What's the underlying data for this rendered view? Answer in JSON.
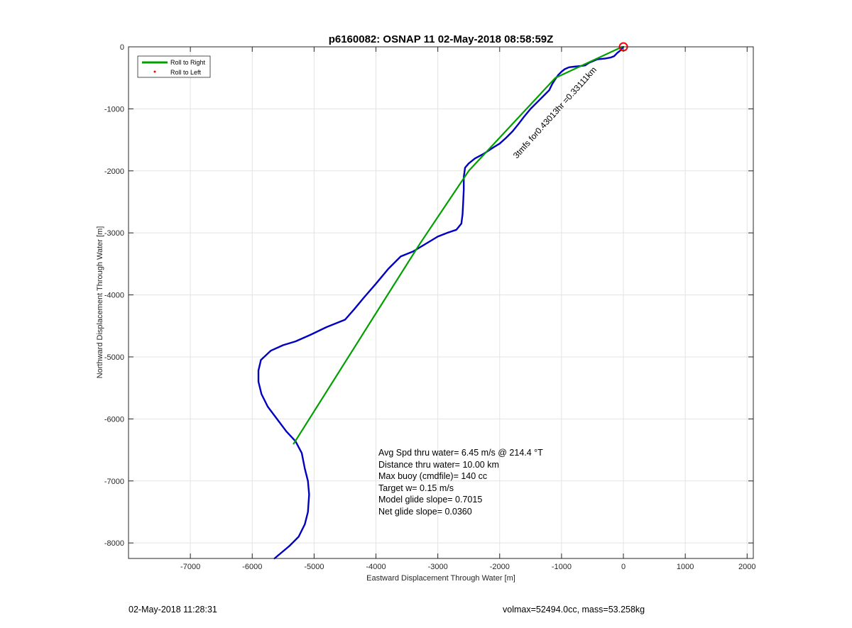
{
  "chart_data": {
    "type": "line",
    "title": "p6160082: OSNAP 11 02-May-2018 08:58:59Z",
    "xlabel": "Eastward Displacement Through Water [m]",
    "ylabel": "Northward Displacement Through Water [m]",
    "xlim": [
      -8000,
      2100
    ],
    "ylim": [
      -8250,
      0
    ],
    "xticks": [
      -7000,
      -6000,
      -5000,
      -4000,
      -3000,
      -2000,
      -1000,
      0,
      1000,
      2000
    ],
    "yticks": [
      0,
      -1000,
      -2000,
      -3000,
      -4000,
      -5000,
      -6000,
      -7000,
      -8000
    ],
    "grid": true,
    "legend_placement": "top-left",
    "legend": [
      {
        "label": "Roll to Right",
        "color": "#00a000",
        "style": "line"
      },
      {
        "label": "Roll to Left",
        "color": "#ff0000",
        "style": "dot"
      }
    ],
    "series": [
      {
        "color": "#0000c0",
        "x": [
          0,
          -50,
          -100,
          -150,
          -200,
          -300,
          -420,
          -560,
          -620,
          -700,
          -800,
          -880,
          -950,
          -1000,
          -1050,
          -1100,
          -1150,
          -1200,
          -1300,
          -1400,
          -1500,
          -1600,
          -1700,
          -1790,
          -1900,
          -2000,
          -2100,
          -2250,
          -2400,
          -2500,
          -2560,
          -2580,
          -2580,
          -2590,
          -2600,
          -2620,
          -2700,
          -2850,
          -3000,
          -3200,
          -3400,
          -3600,
          -3800,
          -4000,
          -4200,
          -4350,
          -4500,
          -4800,
          -5050,
          -5300,
          -5500,
          -5700,
          -5860,
          -5900,
          -5900,
          -5850,
          -5750,
          -5600,
          -5450,
          -5300,
          -5200,
          -5150,
          -5100,
          -5080,
          -5100,
          -5150,
          -5250,
          -5400,
          -5640
        ],
        "y": [
          0,
          -60,
          -100,
          -150,
          -170,
          -190,
          -200,
          -260,
          -300,
          -310,
          -320,
          -330,
          -360,
          -400,
          -450,
          -520,
          -600,
          -700,
          -800,
          -900,
          -1000,
          -1120,
          -1250,
          -1360,
          -1470,
          -1560,
          -1620,
          -1720,
          -1800,
          -1880,
          -1950,
          -2100,
          -2300,
          -2500,
          -2700,
          -2850,
          -2950,
          -3000,
          -3060,
          -3180,
          -3300,
          -3380,
          -3580,
          -3820,
          -4050,
          -4230,
          -4400,
          -4520,
          -4640,
          -4750,
          -4810,
          -4900,
          -5050,
          -5220,
          -5400,
          -5600,
          -5800,
          -6000,
          -6200,
          -6360,
          -6550,
          -6800,
          -7000,
          -7220,
          -7500,
          -7700,
          -7900,
          -8050,
          -8250
        ]
      },
      {
        "name": "Roll to Right",
        "color": "#00a000",
        "x": [
          -5330,
          -3300,
          -2500,
          -1100,
          -20
        ],
        "y": [
          -6400,
          -3190,
          -2000,
          -500,
          0
        ]
      }
    ],
    "annotations": {
      "track_label": "3tmfs for0.43013hr =0.33111km",
      "track_label_rotation_deg": 48,
      "start_marker": {
        "x": 0,
        "y": 0,
        "color": "#ff0000"
      }
    },
    "stats": [
      "Avg Spd thru water=  6.45 m/s @ 214.4 °T",
      "Distance thru water= 10.00 km",
      "Max buoy (cmdfile)= 140 cc",
      "Target w= 0.15 m/s",
      "Model glide slope= 0.7015",
      "Net glide slope= 0.0360"
    ]
  },
  "footer": {
    "timestamp": "02-May-2018 11:28:31",
    "volmax_mass": "volmax=52494.0cc, mass=53.258kg"
  }
}
